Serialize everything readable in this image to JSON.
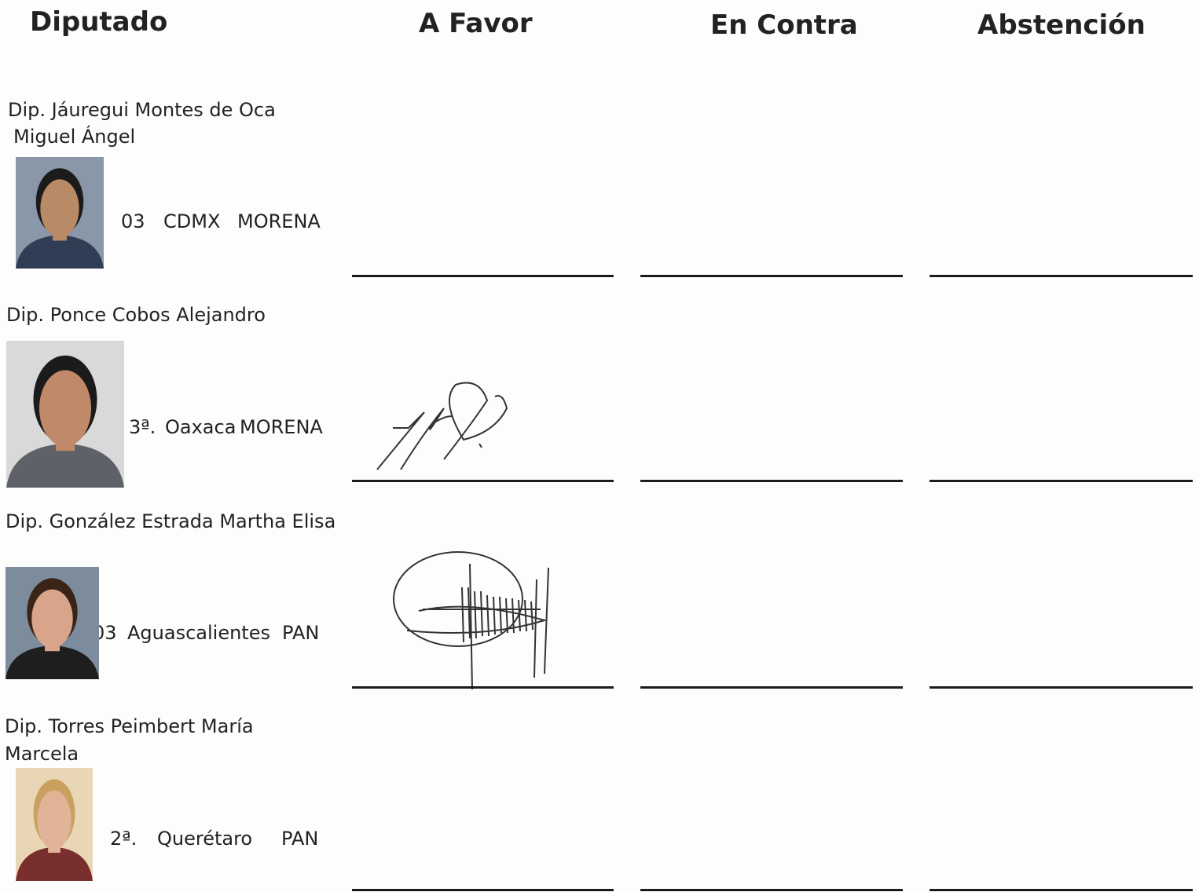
{
  "header": {
    "diputado": "Diputado",
    "a_favor": "A Favor",
    "en_contra": "En Contra",
    "abstencion": "Abstención"
  },
  "rows": [
    {
      "name_lines": [
        "Dip. Jáuregui Montes de Oca",
        "Miguel Ángel"
      ],
      "district": "03",
      "state": "CDMX",
      "party": "MORENA"
    },
    {
      "name_lines": [
        "Dip. Ponce Cobos Alejandro"
      ],
      "district": "3ª.",
      "state": "Oaxaca",
      "party": "MORENA"
    },
    {
      "name_lines": [
        "Dip. González Estrada Martha Elisa"
      ],
      "district": "03",
      "state": "Aguascalientes",
      "party": "PAN"
    },
    {
      "name_lines": [
        "Dip. Torres Peimbert María",
        "Marcela"
      ],
      "district": "2ª.",
      "state": "Querétaro",
      "party": "PAN"
    }
  ]
}
